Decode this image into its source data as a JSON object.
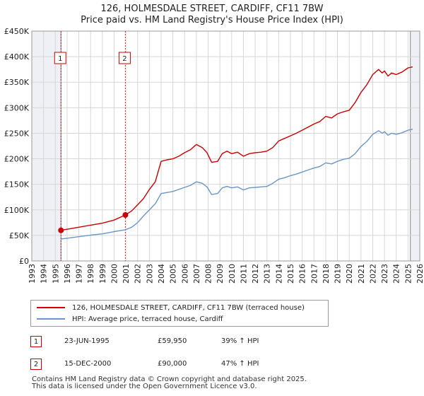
{
  "header": {
    "title_line1": "126, HOLMESDALE STREET, CARDIFF, CF11 7BW",
    "title_line2": "Price paid vs. HM Land Registry's House Price Index (HPI)"
  },
  "colors": {
    "property": "#cc0000",
    "hpi": "#6b96c9",
    "grid": "#d7d7d7",
    "shade": "#eef0f6",
    "marker_line": "#cc0000"
  },
  "chart_data": {
    "type": "line",
    "title": "126, HOLMESDALE STREET, CARDIFF, CF11 7BW — Price paid vs. HM Land Registry's House Price Index (HPI)",
    "xlabel": "",
    "ylabel": "",
    "xlim": [
      1993,
      2026
    ],
    "ylim": [
      0,
      450000
    ],
    "grid": true,
    "y_ticks": [
      {
        "value": 0,
        "label": "£0"
      },
      {
        "value": 50000,
        "label": "£50K"
      },
      {
        "value": 100000,
        "label": "£100K"
      },
      {
        "value": 150000,
        "label": "£150K"
      },
      {
        "value": 200000,
        "label": "£200K"
      },
      {
        "value": 250000,
        "label": "£250K"
      },
      {
        "value": 300000,
        "label": "£300K"
      },
      {
        "value": 350000,
        "label": "£350K"
      },
      {
        "value": 400000,
        "label": "£400K"
      },
      {
        "value": 450000,
        "label": "£450K"
      }
    ],
    "x_ticks": [
      "1993",
      "1994",
      "1995",
      "1996",
      "1997",
      "1998",
      "1999",
      "2000",
      "2001",
      "2002",
      "2003",
      "2004",
      "2005",
      "2006",
      "2007",
      "2008",
      "2009",
      "2010",
      "2011",
      "2012",
      "2013",
      "2014",
      "2015",
      "2016",
      "2017",
      "2018",
      "2019",
      "2020",
      "2021",
      "2022",
      "2023",
      "2024",
      "2025",
      "2026"
    ],
    "shaded_ranges": [
      [
        1993,
        1995.48
      ],
      [
        2025.2,
        2026
      ]
    ],
    "series": [
      {
        "name": "126, HOLMESDALE STREET, CARDIFF, CF11 7BW (terraced house)",
        "x": [
          1995.48,
          1996,
          1997,
          1998,
          1999,
          2000,
          2000.96,
          2001.5,
          2002,
          2002.5,
          2003,
          2003.5,
          2004,
          2004.5,
          2005,
          2005.5,
          2006,
          2006.5,
          2007,
          2007.5,
          2007.9,
          2008.3,
          2008.8,
          2009.2,
          2009.6,
          2010,
          2010.5,
          2011,
          2011.5,
          2012,
          2012.5,
          2013,
          2013.5,
          2014,
          2014.5,
          2015,
          2015.5,
          2016,
          2016.5,
          2017,
          2017.5,
          2018,
          2018.5,
          2019,
          2019.5,
          2020,
          2020.5,
          2021,
          2021.5,
          2022,
          2022.5,
          2022.8,
          2023,
          2023.3,
          2023.6,
          2024,
          2024.5,
          2025,
          2025.4
        ],
        "values": [
          59950,
          62000,
          66000,
          70000,
          74000,
          80000,
          90000,
          98000,
          110000,
          122000,
          140000,
          155000,
          195000,
          198000,
          200000,
          205000,
          212000,
          218000,
          228000,
          222000,
          212000,
          193000,
          195000,
          210000,
          215000,
          210000,
          213000,
          205000,
          210000,
          212000,
          213000,
          215000,
          222000,
          235000,
          240000,
          245000,
          250000,
          256000,
          262000,
          268000,
          273000,
          283000,
          280000,
          288000,
          292000,
          295000,
          310000,
          330000,
          345000,
          365000,
          375000,
          368000,
          372000,
          362000,
          368000,
          365000,
          370000,
          378000,
          380000
        ]
      },
      {
        "name": "HPI: Average price, terraced house, Cardiff",
        "x": [
          1995.48,
          1996,
          1997,
          1998,
          1999,
          2000,
          2000.96,
          2001.5,
          2002,
          2002.5,
          2003,
          2003.5,
          2004,
          2004.5,
          2005,
          2005.5,
          2006,
          2006.5,
          2007,
          2007.5,
          2007.9,
          2008.3,
          2008.8,
          2009.2,
          2009.6,
          2010,
          2010.5,
          2011,
          2011.5,
          2012,
          2012.5,
          2013,
          2013.5,
          2014,
          2014.5,
          2015,
          2015.5,
          2016,
          2016.5,
          2017,
          2017.5,
          2018,
          2018.5,
          2019,
          2019.5,
          2020,
          2020.5,
          2021,
          2021.5,
          2022,
          2022.5,
          2022.8,
          2023,
          2023.3,
          2023.6,
          2024,
          2024.5,
          2025,
          2025.4
        ],
        "values": [
          43000,
          44500,
          47500,
          50500,
          53000,
          57500,
          61000,
          66000,
          75000,
          88000,
          100000,
          112000,
          132000,
          134000,
          136000,
          140000,
          144000,
          148000,
          155000,
          152000,
          145000,
          130000,
          132000,
          143000,
          146000,
          143000,
          145000,
          139000,
          143000,
          144000,
          145000,
          146000,
          152000,
          160000,
          163000,
          167000,
          170000,
          174000,
          178000,
          182000,
          185000,
          192000,
          190000,
          195000,
          199000,
          201000,
          210000,
          224000,
          234000,
          248000,
          255000,
          250000,
          253000,
          246000,
          250000,
          248000,
          251000,
          256000,
          258000
        ]
      }
    ],
    "sale_markers": [
      {
        "label": "1",
        "x": 1995.48,
        "value": 59950
      },
      {
        "label": "2",
        "x": 2000.96,
        "value": 90000
      }
    ]
  },
  "legend": {
    "items": [
      {
        "label": "126, HOLMESDALE STREET, CARDIFF, CF11 7BW (terraced house)"
      },
      {
        "label": "HPI: Average price, terraced house, Cardiff"
      }
    ]
  },
  "sales": [
    {
      "num": "1",
      "date": "23-JUN-1995",
      "price": "£59,950",
      "hpi": "39% ↑ HPI"
    },
    {
      "num": "2",
      "date": "15-DEC-2000",
      "price": "£90,000",
      "hpi": "47% ↑ HPI"
    }
  ],
  "footer": {
    "line1": "Contains HM Land Registry data © Crown copyright and database right 2025.",
    "line2": "This data is licensed under the Open Government Licence v3.0."
  }
}
